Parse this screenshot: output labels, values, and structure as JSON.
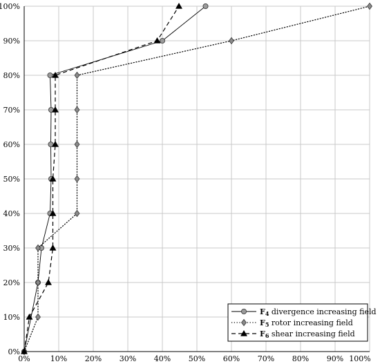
{
  "chart_data": {
    "type": "line",
    "title": "",
    "xlabel": "",
    "ylabel": "",
    "xlim": [
      0,
      100
    ],
    "ylim": [
      0,
      100
    ],
    "x_tick_labels": [
      "0%",
      "10%",
      "20%",
      "30%",
      "40%",
      "50%",
      "60%",
      "70%",
      "80%",
      "90%",
      "100%"
    ],
    "y_tick_labels": [
      "0%",
      "10%",
      "20%",
      "30%",
      "40%",
      "50%",
      "60%",
      "70%",
      "80%",
      "90%",
      "100%"
    ],
    "grid": true,
    "legend_position": "bottom-right",
    "series": [
      {
        "id": "f4",
        "legend": {
          "letter": "F",
          "sub": "4",
          "rest": " divergence increasing field"
        },
        "line_style": "solid",
        "marker": "circle",
        "marker_color": "#9a9a9a",
        "points": [
          [
            0,
            0
          ],
          [
            4,
            20
          ],
          [
            5,
            30
          ],
          [
            7.5,
            40
          ],
          [
            7.8,
            50
          ],
          [
            7.7,
            60
          ],
          [
            7.8,
            70
          ],
          [
            7.5,
            80
          ],
          [
            40,
            90
          ],
          [
            52.5,
            100
          ]
        ]
      },
      {
        "id": "f5",
        "legend": {
          "letter": "F",
          "sub": "5",
          "rest": " rotor increasing field"
        },
        "line_style": "dotted",
        "marker": "diamond",
        "marker_color": "#8a8a8a",
        "points": [
          [
            0,
            0
          ],
          [
            4,
            10
          ],
          [
            4,
            20
          ],
          [
            4,
            30
          ],
          [
            15.3,
            40
          ],
          [
            15.3,
            50
          ],
          [
            15.3,
            60
          ],
          [
            15.3,
            70
          ],
          [
            15.3,
            80
          ],
          [
            60,
            90
          ],
          [
            100,
            100
          ]
        ]
      },
      {
        "id": "f6",
        "legend": {
          "letter": "F",
          "sub": "6",
          "rest": " shear increasing field"
        },
        "line_style": "dashed",
        "marker": "triangle",
        "marker_color": "#000000",
        "points": [
          [
            0,
            0
          ],
          [
            1.5,
            10
          ],
          [
            7,
            20
          ],
          [
            8.3,
            30
          ],
          [
            8.3,
            40
          ],
          [
            8.3,
            50
          ],
          [
            9,
            60
          ],
          [
            9,
            70
          ],
          [
            9,
            80
          ],
          [
            38.5,
            90
          ],
          [
            44.8,
            100
          ]
        ]
      }
    ]
  }
}
